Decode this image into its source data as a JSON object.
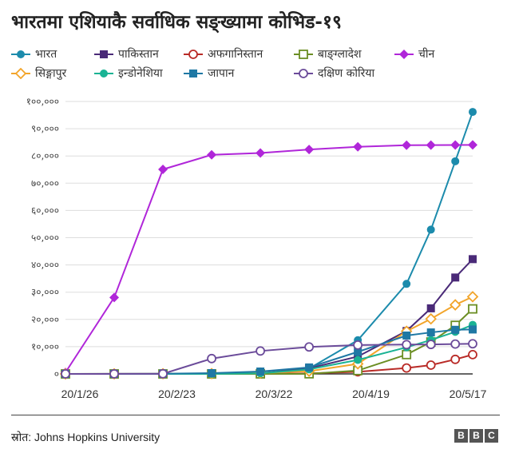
{
  "title": "भारतमा एशियाकै सर्वाधिक सङ्ख्यामा कोभिड-१९",
  "source": "स्रोत: Johns Hopkins University",
  "logo": [
    "B",
    "B",
    "C"
  ],
  "chart_data": {
    "type": "line",
    "title": "भारतमा एशियाकै सर्वाधिक सङ्ख्यामा कोभिड-१९",
    "x_ticks": [
      "20/1/26",
      "20/2/23",
      "20/3/22",
      "20/4/19",
      "20/5/17"
    ],
    "y_ticks": [
      "०",
      "१०,०००",
      "२०,०००",
      "३०,०००",
      "४०,०००",
      "५०,०००",
      "६०,०००",
      "७०,०००",
      "८०,०००",
      "९०,०००",
      "१००,०००"
    ],
    "ylim": [
      0,
      100000
    ],
    "xlim": [
      "2020-01-22",
      "2020-05-18"
    ],
    "grid": true,
    "legend_position": "top",
    "x": [
      "2020-01-22",
      "2020-02-05",
      "2020-02-19",
      "2020-03-04",
      "2020-03-18",
      "2020-04-01",
      "2020-04-15",
      "2020-04-29",
      "2020-05-06",
      "2020-05-13",
      "2020-05-18"
    ],
    "series": [
      {
        "name": "भारत",
        "color": "#1c8bac",
        "marker": "circle-filled",
        "values": [
          0,
          3,
          3,
          28,
          151,
          1998,
          12380,
          33050,
          52952,
          78055,
          96169
        ]
      },
      {
        "name": "पाकिस्तान",
        "color": "#4a2a78",
        "marker": "square-filled",
        "values": [
          0,
          0,
          0,
          5,
          247,
          2039,
          6383,
          15759,
          24073,
          35384,
          42125
        ]
      },
      {
        "name": "अफगानिस्तान",
        "color": "#b92b27",
        "marker": "circle-open",
        "values": [
          0,
          0,
          0,
          1,
          22,
          192,
          784,
          2171,
          3224,
          5339,
          7072
        ]
      },
      {
        "name": "बाङ्ग्लादेश",
        "color": "#6b8e23",
        "marker": "square-open",
        "values": [
          0,
          0,
          0,
          0,
          14,
          54,
          1231,
          7103,
          11719,
          17822,
          23870
        ]
      },
      {
        "name": "चीन",
        "color": "#b026d9",
        "marker": "diamond-filled",
        "values": [
          554,
          28060,
          75077,
          80422,
          81102,
          82361,
          83351,
          83940,
          83970,
          84024,
          84063
        ]
      },
      {
        "name": "सिङ्गापुर",
        "color": "#f2a52b",
        "marker": "diamond-open",
        "values": [
          0,
          28,
          84,
          112,
          313,
          1000,
          3699,
          15641,
          20198,
          25346,
          28343
        ]
      },
      {
        "name": "इन्डोनेशिया",
        "color": "#1ab394",
        "marker": "circle-filled",
        "values": [
          0,
          0,
          0,
          2,
          227,
          1677,
          5136,
          9771,
          12438,
          15438,
          18010
        ]
      },
      {
        "name": "जापान",
        "color": "#1f78a4",
        "marker": "square-filled",
        "values": [
          2,
          25,
          84,
          293,
          878,
          2384,
          8100,
          14088,
          15231,
          16193,
          16305
        ]
      },
      {
        "name": "दक्षिण कोरिया",
        "color": "#6b4b9a",
        "marker": "circle-open",
        "values": [
          1,
          19,
          51,
          5621,
          8413,
          9887,
          10591,
          10765,
          10806,
          10962,
          11065
        ]
      }
    ]
  }
}
